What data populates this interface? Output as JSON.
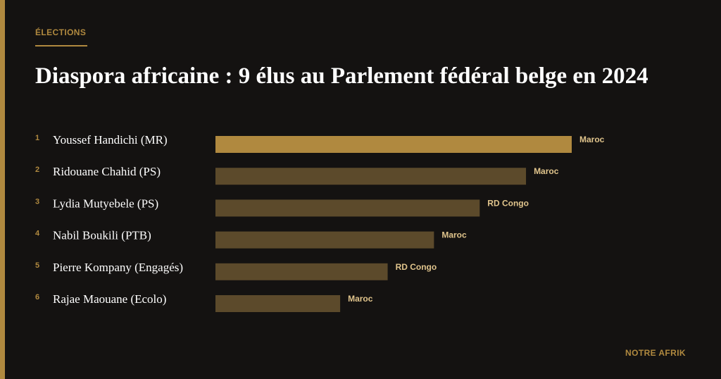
{
  "header": {
    "kicker": "ÉLECTIONS",
    "title": "Diaspora africaine : 9 élus au Parlement fédéral belge en 2024"
  },
  "footer": {
    "brand": "NOTRE AFRIK"
  },
  "colors": {
    "accent": "#b0893f",
    "bar_highlight": "#b0893f",
    "bar_default": "#5c4a2b",
    "background": "#141211",
    "text": "#ffffff"
  },
  "chart_data": {
    "type": "bar",
    "orientation": "horizontal",
    "categories": [
      "Youssef Handichi (MR)",
      "Ridouane Chahid (PS)",
      "Lydia Mutyebele (PS)",
      "Nabil Boukili (PTB)",
      "Pierre Kompany (Engagés)",
      "Rajae Maouane (Ecolo)"
    ],
    "ranks": [
      "1",
      "2",
      "3",
      "4",
      "5",
      "6"
    ],
    "values": [
      6,
      5.23,
      4.45,
      3.68,
      2.9,
      2.1
    ],
    "data_labels": [
      "Maroc",
      "Maroc",
      "RD Congo",
      "Maroc",
      "RD Congo",
      "Maroc"
    ],
    "highlight_index": 0,
    "xlim": [
      0,
      6
    ],
    "grid": false,
    "title": "",
    "xlabel": "",
    "ylabel": ""
  }
}
